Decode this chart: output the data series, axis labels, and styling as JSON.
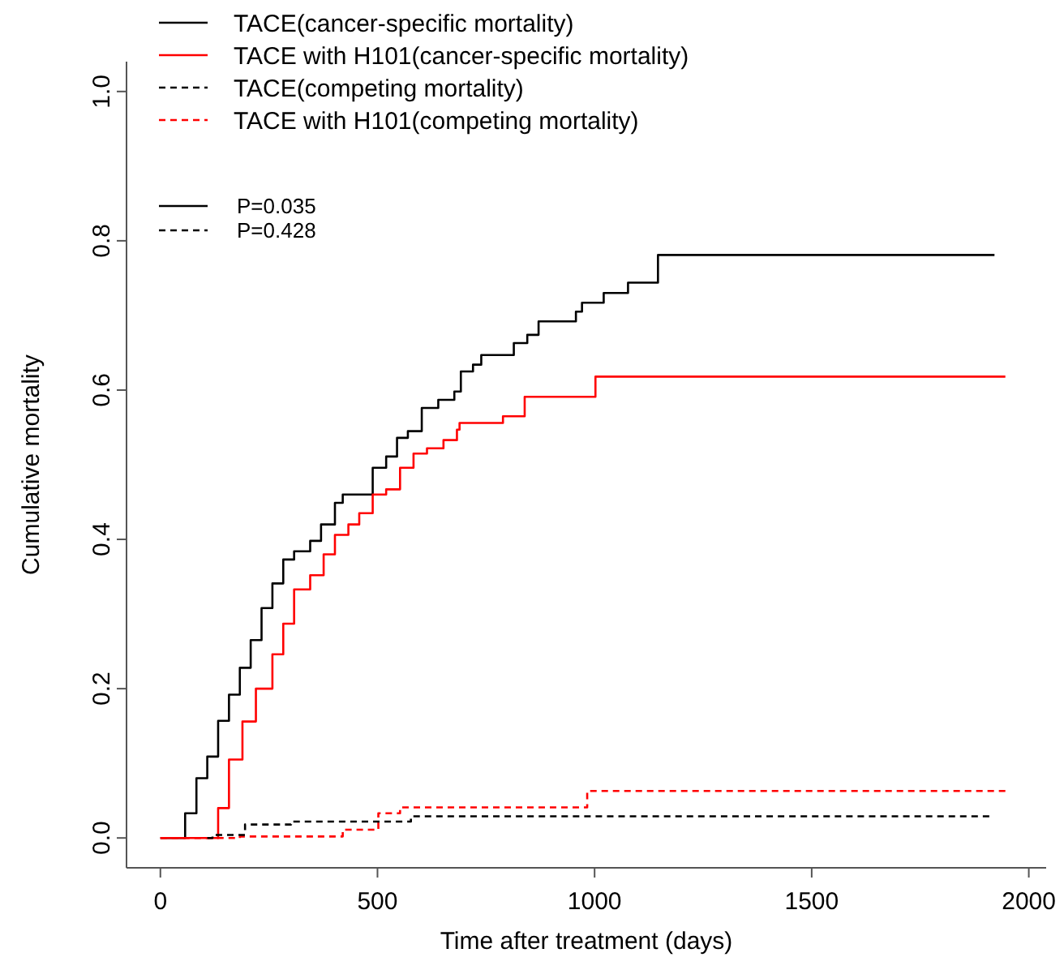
{
  "chart_data": {
    "type": "step",
    "xlabel": "Time after treatment (days)",
    "ylabel": "Cumulative mortality",
    "xlim": [
      -78,
      2040
    ],
    "ylim": [
      -0.04,
      1.04
    ],
    "xticks": [
      0,
      500,
      1000,
      1500,
      2000
    ],
    "yticks": [
      {
        "value": 0,
        "label": "0.0"
      },
      {
        "value": 0.2,
        "label": "0.2"
      },
      {
        "value": 0.4,
        "label": "0.4"
      },
      {
        "value": 0.6,
        "label": "0.6"
      },
      {
        "value": 0.8,
        "label": "0.8"
      },
      {
        "value": 1,
        "label": "1.0"
      }
    ],
    "grid": false,
    "legend": "top left",
    "annotations": [
      "P=0.035",
      "P=0.428"
    ],
    "series": [
      {
        "name": "TACE(cancer-specific mortality)",
        "color": "#000000",
        "line_style": "solid",
        "x": [
          0,
          39,
          57,
          83,
          108,
          133,
          158,
          183,
          208,
          233,
          258,
          283,
          308,
          345,
          370,
          402,
          420,
          489,
          520,
          545,
          570,
          602,
          640,
          677,
          692,
          720,
          739,
          814,
          845,
          871,
          957,
          971,
          1021,
          1077,
          1146,
          1921
        ],
        "values": [
          0,
          0,
          0.033,
          0.08,
          0.109,
          0.157,
          0.192,
          0.228,
          0.265,
          0.308,
          0.341,
          0.373,
          0.384,
          0.398,
          0.42,
          0.449,
          0.46,
          0.496,
          0.511,
          0.536,
          0.545,
          0.576,
          0.587,
          0.598,
          0.625,
          0.634,
          0.647,
          0.663,
          0.674,
          0.692,
          0.705,
          0.717,
          0.73,
          0.744,
          0.781,
          0.781
        ]
      },
      {
        "name": "TACE with H101(cancer-specific mortality)",
        "color": "#ff0000",
        "line_style": "solid",
        "x": [
          0,
          114,
          133,
          158,
          189,
          220,
          258,
          283,
          308,
          345,
          376,
          402,
          433,
          458,
          489,
          520,
          552,
          583,
          614,
          652,
          683,
          689,
          789,
          839,
          1002,
          1946
        ],
        "values": [
          0,
          0,
          0.04,
          0.105,
          0.156,
          0.2,
          0.246,
          0.287,
          0.333,
          0.352,
          0.38,
          0.406,
          0.42,
          0.435,
          0.46,
          0.467,
          0.496,
          0.515,
          0.522,
          0.533,
          0.547,
          0.556,
          0.565,
          0.591,
          0.618,
          0.618
        ]
      },
      {
        "name": "TACE(competing mortality)",
        "color": "#000000",
        "line_style": "dashed",
        "x": [
          108,
          120,
          195,
          301,
          577,
          1909
        ],
        "values": [
          0,
          0.004,
          0.018,
          0.022,
          0.029,
          0.029
        ]
      },
      {
        "name": "TACE with H101(competing mortality)",
        "color": "#ff0000",
        "line_style": "dashed",
        "x": [
          0,
          183,
          420,
          502,
          552,
          983,
          1946
        ],
        "values": [
          0,
          0.002,
          0.011,
          0.033,
          0.041,
          0.063,
          0.063
        ]
      }
    ]
  }
}
